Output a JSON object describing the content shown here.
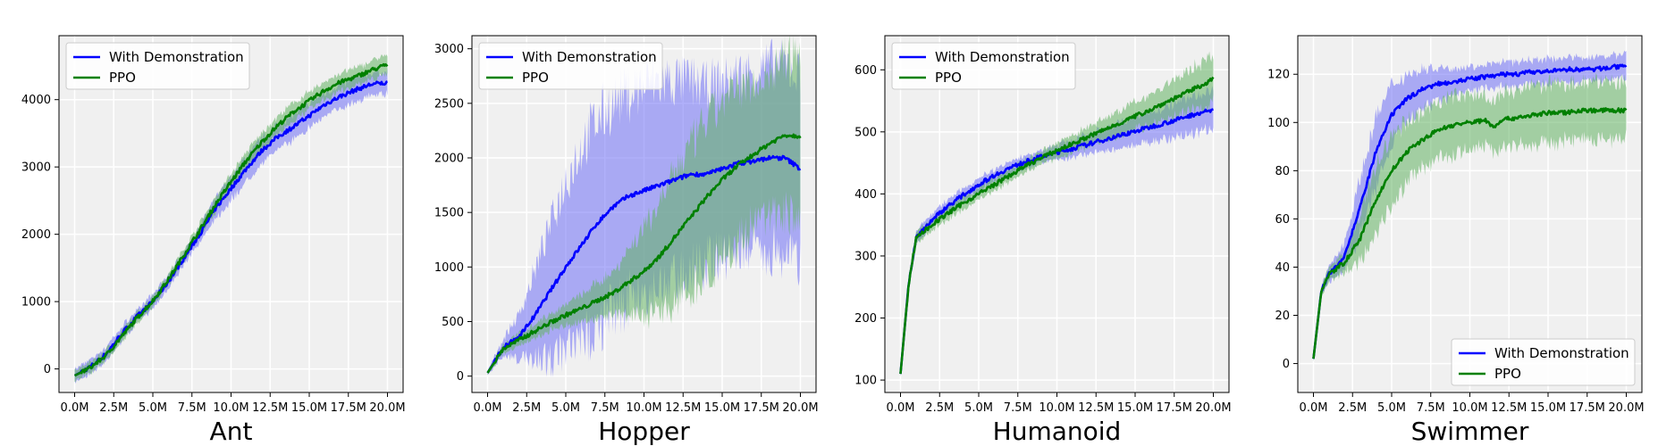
{
  "colors": {
    "with_demo": "#0000ff",
    "with_demo_band": "#6f6ff6",
    "ppo": "#008000",
    "ppo_band": "#62b262",
    "plot_bg": "#f0f0f0",
    "grid": "#ffffff"
  },
  "chart_data": [
    {
      "type": "line",
      "title": "Ant",
      "xlabel": "",
      "ylabel": "",
      "x": [
        0,
        1,
        2,
        3,
        4,
        5,
        6,
        7,
        8,
        9,
        10,
        11,
        12,
        13,
        14,
        15,
        16,
        17,
        18,
        19,
        20
      ],
      "xlim": [
        -1,
        21
      ],
      "ylim": [
        -350,
        4950
      ],
      "xticks": [
        0,
        2.5,
        5,
        7.5,
        10,
        12.5,
        15,
        17.5,
        20
      ],
      "xtick_labels": [
        "0.0M",
        "2.5M",
        "5.0M",
        "7.5M",
        "10.0M",
        "12.5M",
        "15.0M",
        "17.5M",
        "20.0M"
      ],
      "yticks": [
        0,
        1000,
        2000,
        3000,
        4000
      ],
      "ytick_labels": [
        "0",
        "1000",
        "2000",
        "3000",
        "4000"
      ],
      "grid": true,
      "legend_position": "top-left",
      "series": [
        {
          "name": "With Demonstration",
          "values": [
            -100,
            30,
            220,
            520,
            780,
            1000,
            1300,
            1650,
            2000,
            2380,
            2680,
            2980,
            3250,
            3450,
            3600,
            3760,
            3930,
            4050,
            4150,
            4230,
            4250
          ],
          "band": [
            100,
            100,
            100,
            100,
            100,
            100,
            100,
            100,
            120,
            150,
            180,
            180,
            180,
            180,
            180,
            180,
            170,
            170,
            170,
            170,
            170
          ]
        },
        {
          "name": "PPO",
          "values": [
            -100,
            20,
            200,
            480,
            760,
            1010,
            1330,
            1700,
            2060,
            2440,
            2780,
            3100,
            3380,
            3620,
            3820,
            3980,
            4140,
            4260,
            4340,
            4440,
            4520
          ],
          "band": [
            80,
            80,
            80,
            80,
            80,
            80,
            80,
            90,
            100,
            110,
            120,
            130,
            130,
            130,
            130,
            130,
            130,
            130,
            130,
            140,
            140
          ]
        }
      ]
    },
    {
      "type": "line",
      "title": "Hopper",
      "xlabel": "",
      "ylabel": "",
      "x": [
        0,
        1,
        2,
        3,
        4,
        5,
        6,
        7,
        8,
        9,
        10,
        11,
        12,
        13,
        14,
        15,
        16,
        17,
        18,
        19,
        20
      ],
      "xlim": [
        -1,
        21
      ],
      "ylim": [
        -150,
        3120
      ],
      "xticks": [
        0,
        2.5,
        5,
        7.5,
        10,
        12.5,
        15,
        17.5,
        20
      ],
      "xtick_labels": [
        "0.0M",
        "2.5M",
        "5.0M",
        "7.5M",
        "10.0M",
        "12.5M",
        "15.0M",
        "17.5M",
        "20.0M"
      ],
      "yticks": [
        0,
        500,
        1000,
        1500,
        2000,
        2500,
        3000
      ],
      "ytick_labels": [
        "0",
        "500",
        "1000",
        "1500",
        "2000",
        "2500",
        "3000"
      ],
      "grid": true,
      "legend_position": "top-left",
      "series": [
        {
          "name": "With Demonstration",
          "values": [
            30,
            260,
            360,
            550,
            780,
            1000,
            1200,
            1400,
            1550,
            1650,
            1700,
            1750,
            1800,
            1850,
            1850,
            1900,
            1950,
            1970,
            2000,
            2000,
            1900
          ],
          "band": [
            20,
            80,
            200,
            400,
            600,
            800,
            900,
            950,
            950,
            950,
            950,
            950,
            900,
            850,
            800,
            800,
            800,
            820,
            850,
            850,
            850
          ]
        },
        {
          "name": "PPO",
          "values": [
            30,
            250,
            330,
            410,
            490,
            560,
            620,
            690,
            760,
            860,
            960,
            1100,
            1280,
            1460,
            1640,
            1800,
            1930,
            2030,
            2130,
            2210,
            2200
          ],
          "band": [
            20,
            40,
            60,
            70,
            80,
            100,
            120,
            160,
            200,
            300,
            400,
            500,
            600,
            650,
            700,
            700,
            700,
            650,
            650,
            700,
            750
          ]
        }
      ]
    },
    {
      "type": "line",
      "title": "Humanoid",
      "xlabel": "",
      "ylabel": "",
      "x": [
        0,
        0.5,
        1,
        2,
        3,
        4,
        5,
        6,
        7,
        8,
        9,
        10,
        11,
        12,
        13,
        14,
        15,
        16,
        17,
        18,
        19,
        20
      ],
      "xlim": [
        -1,
        21
      ],
      "ylim": [
        80,
        655
      ],
      "xticks": [
        0,
        2.5,
        5,
        7.5,
        10,
        12.5,
        15,
        17.5,
        20
      ],
      "xtick_labels": [
        "0.0M",
        "2.5M",
        "5.0M",
        "7.5M",
        "10.0M",
        "12.5M",
        "15.0M",
        "17.5M",
        "20.0M"
      ],
      "yticks": [
        100,
        200,
        300,
        400,
        500,
        600
      ],
      "ytick_labels": [
        "100",
        "200",
        "300",
        "400",
        "500",
        "600"
      ],
      "grid": true,
      "legend_position": "top-left",
      "series": [
        {
          "name": "With Demonstration",
          "values": [
            110,
            250,
            330,
            358,
            380,
            398,
            415,
            430,
            442,
            452,
            460,
            467,
            473,
            480,
            487,
            494,
            501,
            508,
            515,
            522,
            530,
            535
          ],
          "band": [
            5,
            10,
            10,
            10,
            10,
            10,
            10,
            10,
            10,
            10,
            10,
            12,
            14,
            16,
            18,
            20,
            22,
            24,
            26,
            28,
            30,
            32
          ]
        },
        {
          "name": "PPO",
          "values": [
            110,
            250,
            330,
            350,
            368,
            385,
            400,
            415,
            430,
            445,
            458,
            470,
            481,
            492,
            503,
            514,
            525,
            536,
            548,
            560,
            572,
            585
          ],
          "band": [
            5,
            10,
            10,
            10,
            10,
            10,
            10,
            10,
            10,
            10,
            10,
            12,
            14,
            16,
            18,
            20,
            22,
            25,
            28,
            32,
            36,
            40
          ]
        }
      ]
    },
    {
      "type": "line",
      "title": "Swimmer",
      "xlabel": "",
      "ylabel": "",
      "x": [
        0,
        0.5,
        1,
        2,
        3,
        4,
        5,
        6,
        7,
        8,
        9,
        10,
        11,
        11.5,
        12,
        13,
        14,
        15,
        16,
        17,
        18,
        19,
        20
      ],
      "xlim": [
        -1,
        21
      ],
      "ylim": [
        -12,
        136
      ],
      "xticks": [
        0,
        2.5,
        5,
        7.5,
        10,
        12.5,
        15,
        17.5,
        20
      ],
      "xtick_labels": [
        "0.0M",
        "2.5M",
        "5.0M",
        "7.5M",
        "10.0M",
        "12.5M",
        "15.0M",
        "17.5M",
        "20.0M"
      ],
      "yticks": [
        0,
        20,
        40,
        60,
        80,
        100,
        120
      ],
      "ytick_labels": [
        "0",
        "20",
        "40",
        "60",
        "80",
        "100",
        "120"
      ],
      "grid": true,
      "legend_position": "bottom-right",
      "series": [
        {
          "name": "With Demonstration",
          "values": [
            2,
            30,
            37,
            45,
            65,
            88,
            103,
            110,
            114,
            116,
            117,
            118,
            119,
            119,
            120,
            120,
            121,
            121,
            122,
            122,
            122,
            123,
            123
          ],
          "band": [
            1,
            2,
            3,
            6,
            12,
            14,
            12,
            10,
            8,
            7,
            6,
            5,
            5,
            5,
            5,
            5,
            5,
            5,
            5,
            5,
            5,
            5,
            5
          ]
        },
        {
          "name": "PPO",
          "values": [
            2,
            30,
            37,
            42,
            52,
            68,
            80,
            88,
            93,
            97,
            99,
            100,
            101,
            98,
            101,
            102,
            103,
            104,
            104,
            105,
            105,
            105,
            105
          ],
          "band": [
            1,
            2,
            3,
            4,
            10,
            14,
            14,
            13,
            12,
            12,
            12,
            11,
            11,
            11,
            11,
            12,
            12,
            12,
            12,
            12,
            12,
            12,
            12
          ]
        }
      ]
    }
  ]
}
